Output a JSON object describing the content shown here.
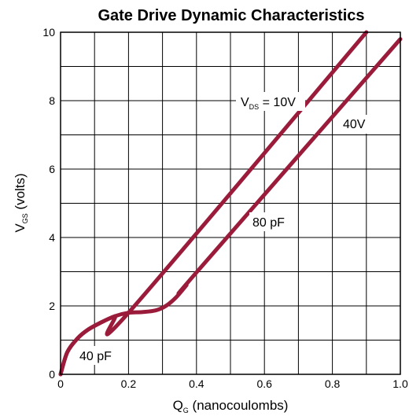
{
  "chart_data": {
    "type": "line",
    "title": "Gate Drive Dynamic Characteristics",
    "xlabel": {
      "main": "Q",
      "sub": "G",
      "rest": " (nanocoulombs)"
    },
    "ylabel": {
      "main": "V",
      "sub": "GS",
      "rest": " (volts)"
    },
    "xlim": [
      0,
      1.0
    ],
    "ylim": [
      0,
      10
    ],
    "x_ticks": [
      "0",
      "0.2",
      "0.4",
      "0.6",
      "0.8",
      "1.0"
    ],
    "y_ticks": [
      "0",
      "2",
      "4",
      "6",
      "8",
      "10"
    ],
    "grid": true,
    "color": "#9b1b3a",
    "series": [
      {
        "name": "VDS = 10V",
        "x": [
          0,
          0.02,
          0.05,
          0.08,
          0.12,
          0.16,
          0.2,
          0.9
        ],
        "y": [
          0,
          0.65,
          1.05,
          1.3,
          1.52,
          1.7,
          1.8,
          10.0
        ]
      },
      {
        "name": "40V",
        "x": [
          0,
          0.02,
          0.05,
          0.08,
          0.12,
          0.16,
          0.2,
          0.24,
          0.28,
          0.31,
          0.34,
          0.37,
          0.4,
          1.0
        ],
        "y": [
          0,
          0.65,
          1.05,
          1.3,
          1.52,
          1.7,
          1.8,
          1.82,
          1.87,
          2.0,
          2.25,
          2.6,
          2.98,
          9.8
        ]
      }
    ],
    "annotations": {
      "vds_main": "V",
      "vds_sub": "DS",
      "vds_rest": " = 10V",
      "v40": "40V",
      "pf80": "80 pF",
      "pf40": "40 pF"
    }
  }
}
